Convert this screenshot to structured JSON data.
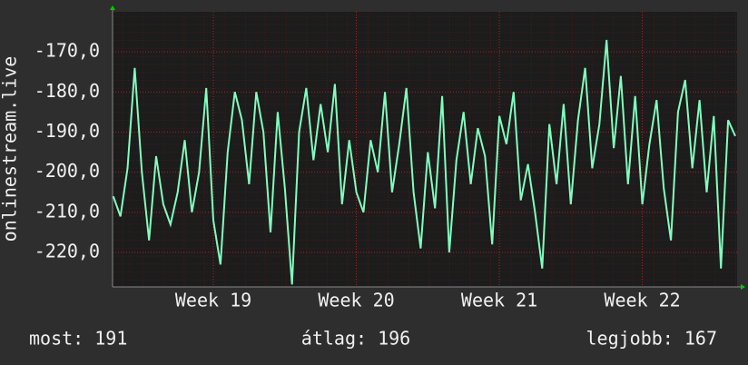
{
  "chart_data": {
    "type": "line",
    "y_label": "onlinestream.live",
    "x": [
      18.3,
      18.35,
      18.4,
      18.45,
      18.5,
      18.55,
      18.6,
      18.65,
      18.7,
      18.75,
      18.8,
      18.85,
      18.9,
      18.95,
      19.0,
      19.05,
      19.1,
      19.15,
      19.2,
      19.25,
      19.3,
      19.35,
      19.4,
      19.45,
      19.5,
      19.55,
      19.6,
      19.65,
      19.7,
      19.75,
      19.8,
      19.85,
      19.9,
      19.95,
      20.0,
      20.05,
      20.1,
      20.15,
      20.2,
      20.25,
      20.3,
      20.35,
      20.4,
      20.45,
      20.5,
      20.55,
      20.6,
      20.65,
      20.7,
      20.75,
      20.8,
      20.85,
      20.9,
      20.95,
      21.0,
      21.05,
      21.1,
      21.15,
      21.2,
      21.25,
      21.3,
      21.35,
      21.4,
      21.45,
      21.5,
      21.55,
      21.6,
      21.65,
      21.7,
      21.75,
      21.8,
      21.85,
      21.9,
      21.95,
      22.0,
      22.05,
      22.1,
      22.15,
      22.2,
      22.25,
      22.3,
      22.35,
      22.4,
      22.45,
      22.5,
      22.55,
      22.6,
      22.65
    ],
    "series": [
      {
        "color": "#80ffbf",
        "values": [
          -206,
          -211,
          -199,
          -174,
          -200,
          -217,
          -196,
          -208,
          -213,
          -205,
          -192,
          -210,
          -200,
          -179,
          -212,
          -223,
          -195,
          -180,
          -187,
          -203,
          -180,
          -190,
          -215,
          -185,
          -204,
          -228,
          -190,
          -179,
          -197,
          -183,
          -195,
          -178,
          -208,
          -192,
          -205,
          -210,
          -192,
          -200,
          -180,
          -205,
          -193,
          -179,
          -205,
          -219,
          -195,
          -209,
          -181,
          -220,
          -197,
          -185,
          -203,
          -189,
          -196,
          -218,
          -186,
          -193,
          -180,
          -207,
          -198,
          -210,
          -224,
          -188,
          -203,
          -183,
          -208,
          -187,
          -174,
          -199,
          -188,
          -167,
          -194,
          -176,
          -203,
          -181,
          -208,
          -193,
          -182,
          -204,
          -217,
          -185,
          -177,
          -199,
          -182,
          -205,
          -186,
          -224,
          -187,
          -191
        ]
      }
    ],
    "xlim": [
      18.295,
      22.663
    ],
    "xticks": [
      {
        "value": 19,
        "label": "Week 19"
      },
      {
        "value": 20,
        "label": "Week 20"
      },
      {
        "value": 21,
        "label": "Week 21"
      },
      {
        "value": 22,
        "label": "Week 22"
      }
    ],
    "ylim": [
      -228.6,
      -160
    ],
    "yticks": [
      {
        "value": -220,
        "label": "-220,0"
      },
      {
        "value": -210,
        "label": "-210,0"
      },
      {
        "value": -200,
        "label": "-200,0"
      },
      {
        "value": -190,
        "label": "-190,0"
      },
      {
        "value": -180,
        "label": "-180,0"
      },
      {
        "value": -170,
        "label": "-170,0"
      }
    ],
    "grid": true,
    "stats": [
      "most: 191",
      "átlag: 196",
      "legjobb: 167"
    ]
  }
}
